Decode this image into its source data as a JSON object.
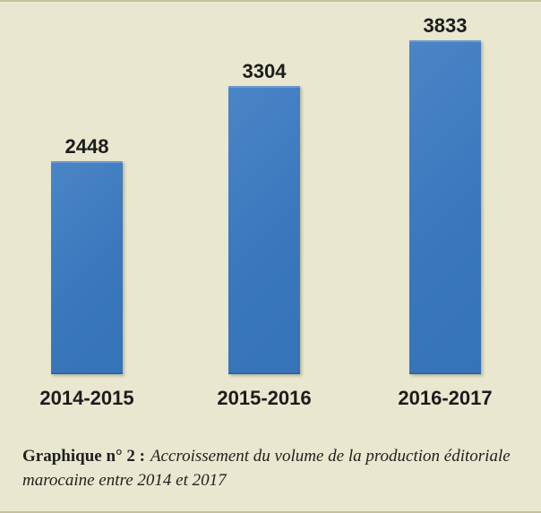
{
  "colors": {
    "background": "#e9e7cf",
    "bar": "#3a77bd",
    "bar_top_highlight": "#6d9ad1",
    "bar_bottom_edge": "#2f66a6",
    "label_text": "#1c1c1c",
    "caption_text": "#1f1f1f",
    "page_edge_line": "#c4c19c"
  },
  "chart_data": {
    "type": "bar",
    "categories": [
      "2014-2015",
      "2015-2016",
      "2016-2017"
    ],
    "values": [
      2448,
      3304,
      3833
    ],
    "title": "",
    "xlabel": "",
    "ylabel": "",
    "ylim": [
      0,
      3833
    ],
    "grid": false,
    "axes_visible": false,
    "data_labels_position": "above-bar",
    "legend": "none"
  },
  "caption": {
    "prefix": "Graphique n° 2 :",
    "italic_line1": "Accroissement du volume de la production éditoriale",
    "italic_line2": "marocaine entre 2014 et 2017"
  }
}
